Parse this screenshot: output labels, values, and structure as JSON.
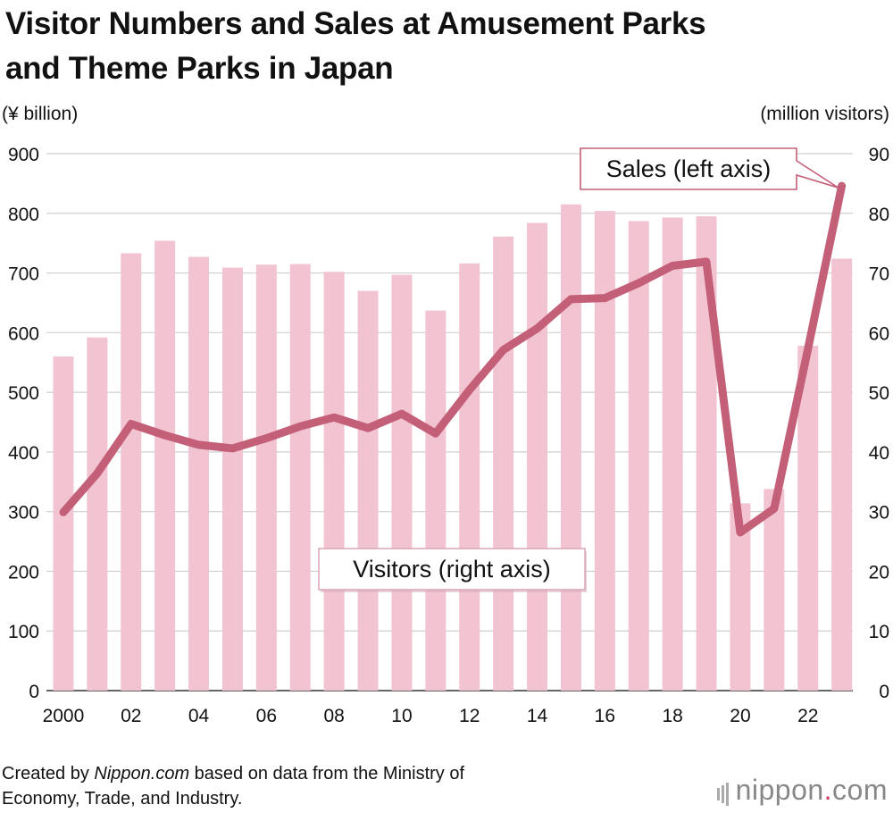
{
  "title_line1": "Visitor Numbers and Sales at Amusement Parks",
  "title_line2": "and Theme Parks in Japan",
  "left_unit": "(¥ billion)",
  "right_unit": "(million visitors)",
  "footer": {
    "prefix": "Created by ",
    "source_name": "Nippon.com",
    "suffix": " based on data from the Ministry of",
    "line2": "Economy, Trade, and Industry."
  },
  "logo": {
    "main": "nippon",
    "dot": ".",
    "tld": "com"
  },
  "colors": {
    "bar": "#f2c4d2",
    "line": "#c45f78",
    "grid": "#cfcfcf",
    "callout_border": "#c45f78"
  },
  "chart_data": {
    "type": "bar",
    "x": [
      "2000",
      "01",
      "02",
      "03",
      "04",
      "05",
      "06",
      "07",
      "08",
      "09",
      "10",
      "11",
      "12",
      "13",
      "14",
      "15",
      "16",
      "17",
      "18",
      "19",
      "20",
      "21",
      "22",
      "23"
    ],
    "x_tick_labels": [
      "2000",
      "02",
      "04",
      "06",
      "08",
      "10",
      "12",
      "14",
      "16",
      "18",
      "20",
      "22"
    ],
    "y_left": {
      "label": "(¥ billion)",
      "ylim": [
        0,
        900
      ],
      "ticks": [
        "0",
        "100",
        "200",
        "300",
        "400",
        "500",
        "600",
        "700",
        "800",
        "900"
      ]
    },
    "y_right": {
      "label": "(million visitors)",
      "ylim": [
        0,
        90
      ],
      "ticks": [
        "0",
        "10",
        "20",
        "30",
        "40",
        "50",
        "60",
        "70",
        "80",
        "90"
      ]
    },
    "series": [
      {
        "name": "Visitors (right axis)",
        "type": "bar",
        "axis": "right",
        "values": [
          56.0,
          59.2,
          73.3,
          75.4,
          72.7,
          70.9,
          71.4,
          71.5,
          70.2,
          67.0,
          69.7,
          63.7,
          71.6,
          76.1,
          78.4,
          81.5,
          80.4,
          78.7,
          79.3,
          79.5,
          31.4,
          33.8,
          57.8,
          72.4
        ]
      },
      {
        "name": "Sales (left axis)",
        "type": "line",
        "axis": "left",
        "values": [
          299,
          364,
          447,
          428,
          412,
          406,
          423,
          443,
          458,
          440,
          464,
          431,
          504,
          571,
          607,
          656,
          658,
          683,
          712,
          719,
          265,
          305,
          573,
          846
        ]
      }
    ],
    "grid": true,
    "annotations": [
      {
        "text": "Sales (left axis)",
        "points_to": "2023 sales"
      },
      {
        "text": "Visitors (right axis)"
      }
    ]
  }
}
